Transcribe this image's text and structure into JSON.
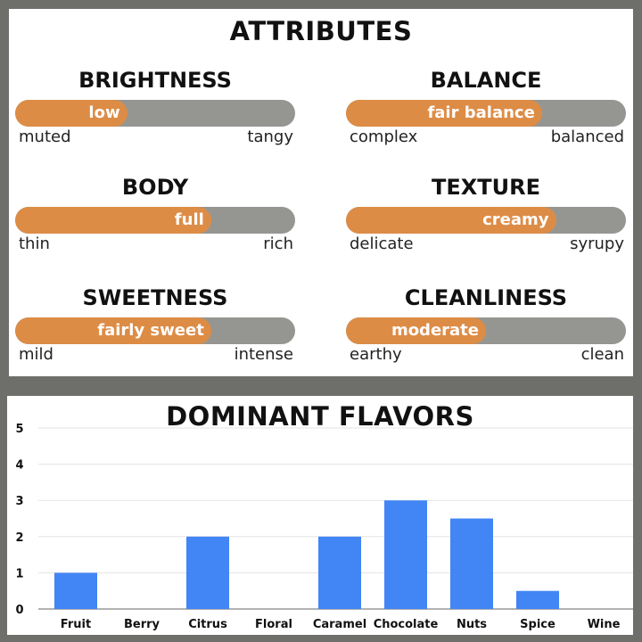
{
  "attributes": {
    "title": "ATTRIBUTES",
    "items": [
      {
        "name": "BRIGHTNESS",
        "value_label": "low",
        "level": 0.4,
        "left": "muted",
        "right": "tangy"
      },
      {
        "name": "BALANCE",
        "value_label": "fair balance",
        "level": 0.7,
        "left": "complex",
        "right": "balanced"
      },
      {
        "name": "BODY",
        "value_label": "full",
        "level": 0.7,
        "left": "thin",
        "right": "rich"
      },
      {
        "name": "TEXTURE",
        "value_label": "creamy",
        "level": 0.75,
        "left": "delicate",
        "right": "syrupy"
      },
      {
        "name": "SWEETNESS",
        "value_label": "fairly sweet",
        "level": 0.7,
        "left": "mild",
        "right": "intense"
      },
      {
        "name": "CLEANLINESS",
        "value_label": "moderate",
        "level": 0.5,
        "left": "earthy",
        "right": "clean"
      }
    ],
    "colors": {
      "fill": "#dd8c46",
      "track": "#959692"
    }
  },
  "chart_data": {
    "type": "bar",
    "title": "DOMINANT FLAVORS",
    "categories": [
      "Fruit",
      "Berry",
      "Citrus",
      "Floral",
      "Caramel",
      "Chocolate",
      "Nuts",
      "Spice",
      "Wine"
    ],
    "values": [
      1,
      0,
      2,
      0,
      2,
      3,
      2.5,
      0.5,
      0
    ],
    "ylim": [
      0,
      5
    ],
    "yticks": [
      "0",
      "1",
      "2",
      "3",
      "4",
      "5"
    ],
    "xlabel": "",
    "ylabel": "",
    "grid": true,
    "bar_color": "#4285f4"
  }
}
